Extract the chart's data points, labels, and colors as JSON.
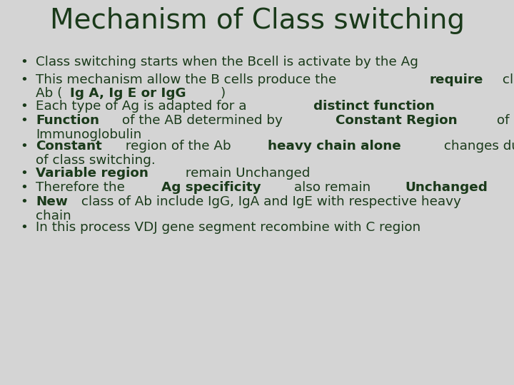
{
  "title": "Mechanism of Class switching",
  "background_color": "#d4d4d4",
  "title_color": "#1a3a1a",
  "text_color": "#1a3a1a",
  "title_fontsize": 28,
  "body_fontsize": 13.2,
  "bullet_lines": [
    {
      "segments": [
        {
          "text": "Class switching starts when the Bcell is activate by the Ag",
          "bold": false
        }
      ],
      "two_line": false
    },
    {
      "segments": [
        {
          "text": "This mechanism allow the B cells produce the ",
          "bold": false
        },
        {
          "text": "require",
          "bold": true
        },
        {
          "text": " class of",
          "bold": false
        }
      ],
      "line2_segments": [
        {
          "text": "Ab (",
          "bold": false
        },
        {
          "text": "Ig A, Ig E or IgG",
          "bold": true
        },
        {
          "text": ")",
          "bold": false
        }
      ],
      "two_line": true
    },
    {
      "segments": [
        {
          "text": "Each type of Ag is adapted for a ",
          "bold": false
        },
        {
          "text": "distinct function",
          "bold": true
        }
      ],
      "two_line": false
    },
    {
      "segments": [
        {
          "text": "Function",
          "bold": true
        },
        {
          "text": " of the AB determined by ",
          "bold": false
        },
        {
          "text": "Constant Region",
          "bold": true
        },
        {
          "text": " of",
          "bold": false
        }
      ],
      "line2_segments": [
        {
          "text": "Immunoglobulin",
          "bold": false
        }
      ],
      "two_line": true
    },
    {
      "segments": [
        {
          "text": "Constant",
          "bold": true
        },
        {
          "text": " region of the Ab ",
          "bold": false
        },
        {
          "text": "heavy chain alone",
          "bold": true
        },
        {
          "text": " changes duration",
          "bold": false
        }
      ],
      "line2_segments": [
        {
          "text": "of class switching.",
          "bold": false
        }
      ],
      "two_line": true
    },
    {
      "segments": [
        {
          "text": "Variable region",
          "bold": true
        },
        {
          "text": " remain Unchanged",
          "bold": false
        }
      ],
      "two_line": false
    },
    {
      "segments": [
        {
          "text": "Therefore the  ",
          "bold": false
        },
        {
          "text": "Ag specificity",
          "bold": true
        },
        {
          "text": " also remain  ",
          "bold": false
        },
        {
          "text": "Unchanged",
          "bold": true
        }
      ],
      "two_line": false
    },
    {
      "segments": [
        {
          "text": "New",
          "bold": true
        },
        {
          "text": " class of Ab include IgG, IgA and IgE with respective heavy",
          "bold": false
        }
      ],
      "line2_segments": [
        {
          "text": "chain",
          "bold": false
        }
      ],
      "two_line": true
    },
    {
      "segments": [
        {
          "text": "In this process VDJ gene segment recombine with C region",
          "bold": false
        }
      ],
      "two_line": false
    }
  ]
}
